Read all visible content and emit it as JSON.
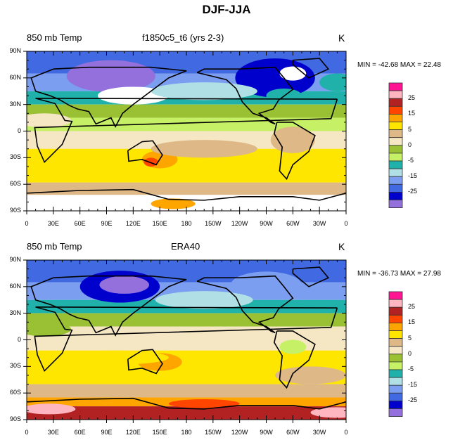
{
  "title": "DJF-JJA",
  "colorbar": {
    "colors": [
      "#FF1493",
      "#FFB6C1",
      "#B22222",
      "#FF4500",
      "#FFA500",
      "#FFE600",
      "#DEB887",
      "#F5E6C4",
      "#9AC133",
      "#C6F066",
      "#20B2AA",
      "#B0E0E6",
      "#7B9EF0",
      "#4169E1",
      "#0000CD",
      "#9370DB"
    ],
    "labels": [
      {
        "text": "25",
        "after": 1
      },
      {
        "text": "15",
        "after": 3
      },
      {
        "text": "5",
        "after": 5
      },
      {
        "text": "0",
        "after": 7
      },
      {
        "text": "-5",
        "after": 9
      },
      {
        "text": "-15",
        "after": 11
      },
      {
        "text": "-25",
        "after": 13
      }
    ]
  },
  "axes": {
    "x_ticks": [
      "0",
      "30E",
      "60E",
      "90E",
      "120E",
      "150E",
      "180",
      "150W",
      "120W",
      "90W",
      "60W",
      "30W",
      "0"
    ],
    "y_ticks": [
      "90N",
      "60N",
      "30N",
      "0",
      "30S",
      "60S",
      "90S"
    ]
  },
  "panels": [
    {
      "left_label": "850 mb Temp",
      "center_label": "f1850c5_t6 (yrs 2-3)",
      "units": "K",
      "stats": "MIN = -42.68 MAX =  22.48"
    },
    {
      "left_label": "850 mb Temp",
      "center_label": "ERA40",
      "units": "K",
      "stats": "MIN = -36.73 MAX =  27.98"
    }
  ],
  "chart_data": {
    "type": "heatmap",
    "title": "DJF-JJA",
    "variable": "850 mb Temp",
    "units": "K",
    "panels": [
      {
        "name": "f1850c5_t6 (yrs 2-3)",
        "min": -42.68,
        "max": 22.48
      },
      {
        "name": "ERA40",
        "min": -36.73,
        "max": 27.98
      }
    ],
    "xlim": [
      0,
      360
    ],
    "ylim": [
      -90,
      90
    ]
  }
}
